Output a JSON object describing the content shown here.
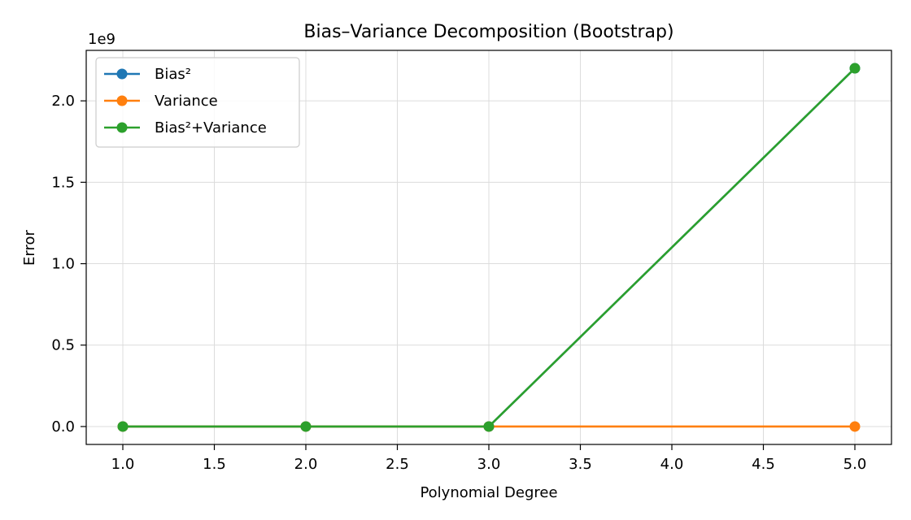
{
  "chart_data": {
    "type": "line",
    "title": "Bias–Variance Decomposition (Bootstrap)",
    "xlabel": "Polynomial Degree",
    "ylabel": "Error",
    "y_offset_label": "1e9",
    "x": [
      1,
      2,
      3,
      5
    ],
    "xlim": [
      0.8,
      5.2
    ],
    "ylim": [
      -0.11,
      2.31
    ],
    "y_scale_factor": 1000000000,
    "x_ticks": [
      1.0,
      1.5,
      2.0,
      2.5,
      3.0,
      3.5,
      4.0,
      4.5,
      5.0
    ],
    "x_tick_labels": [
      "1.0",
      "1.5",
      "2.0",
      "2.5",
      "3.0",
      "3.5",
      "4.0",
      "4.5",
      "5.0"
    ],
    "y_ticks": [
      0.0,
      0.5,
      1.0,
      1.5,
      2.0
    ],
    "y_tick_labels": [
      "0.0",
      "0.5",
      "1.0",
      "1.5",
      "2.0"
    ],
    "grid": true,
    "legend_position": "top-left",
    "series": [
      {
        "name": "Bias²",
        "color": "#1f77b4",
        "values": [
          0.0,
          0.0,
          0.0,
          2.2
        ]
      },
      {
        "name": "Variance",
        "color": "#ff7f0e",
        "values": [
          0.0,
          0.0,
          0.0,
          0.0
        ]
      },
      {
        "name": "Bias²+Variance",
        "color": "#2ca02c",
        "values": [
          0.0,
          0.0,
          0.0,
          2.2
        ]
      }
    ]
  }
}
